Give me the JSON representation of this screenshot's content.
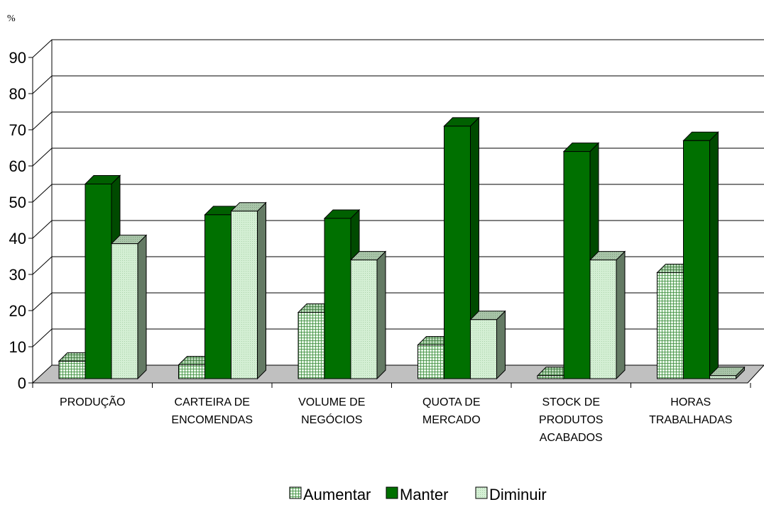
{
  "chart_data": {
    "type": "bar",
    "unit_label": "%",
    "categories": [
      [
        "PRODUÇÃO"
      ],
      [
        "CARTEIRA DE",
        "ENCOMENDAS"
      ],
      [
        "VOLUME DE",
        "NEGÓCIOS"
      ],
      [
        "QUOTA DE",
        "MERCADO"
      ],
      [
        "STOCK DE",
        "PRODUTOS",
        "ACABADOS"
      ],
      [
        "HORAS",
        "TRABALHADAS"
      ]
    ],
    "series": [
      {
        "name": "Aumentar",
        "values": [
          6,
          5,
          19.5,
          10.5,
          2,
          30.5
        ],
        "color": "#e6f7e6",
        "pattern": "grid"
      },
      {
        "name": "Manter",
        "values": [
          55,
          46.5,
          45.5,
          71,
          64,
          67
        ],
        "color": "#007000",
        "pattern": "solid"
      },
      {
        "name": "Diminuir",
        "values": [
          38.5,
          47.5,
          34,
          17.5,
          34,
          2
        ],
        "color": "#cdeacd",
        "pattern": "dots"
      }
    ],
    "ylim": [
      0,
      90
    ],
    "yticks": [
      0,
      10,
      20,
      30,
      40,
      50,
      60,
      70,
      80,
      90
    ],
    "grid": true,
    "legend": "bottom",
    "style": "3d-clustered-column",
    "floor_color": "#c0c0c0"
  }
}
